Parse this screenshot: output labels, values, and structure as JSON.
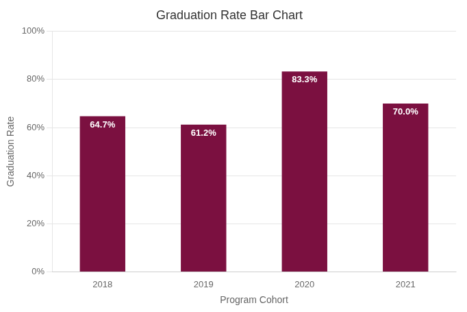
{
  "chart_data": {
    "type": "bar",
    "title": "Graduation Rate Bar Chart",
    "x_label": "Program Cohort",
    "y_label": "Graduation Rate",
    "categories": [
      "2018",
      "2019",
      "2020",
      "2021"
    ],
    "values": [
      64.7,
      61.2,
      83.3,
      70.0
    ],
    "value_labels": [
      "64.7%",
      "61.2%",
      "83.3%",
      "70.0%"
    ],
    "data_labels": true,
    "color": "#7B1040",
    "ylim": [
      0,
      100
    ],
    "yticks": [
      {
        "value": 0,
        "label": "0%"
      },
      {
        "value": 20,
        "label": "20%"
      },
      {
        "value": 40,
        "label": "40%"
      },
      {
        "value": 60,
        "label": "60%"
      },
      {
        "value": 80,
        "label": "80%"
      },
      {
        "value": 100,
        "label": "100%"
      }
    ],
    "grid": true
  }
}
